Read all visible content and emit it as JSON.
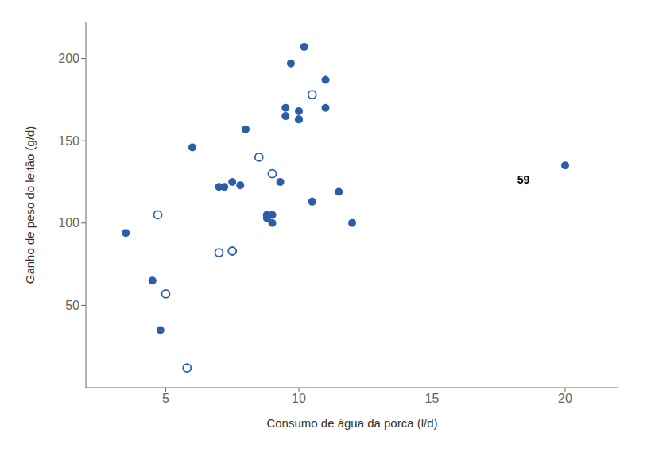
{
  "chart_data": {
    "type": "scatter",
    "xlabel": "Consumo de água da porca (l/d)",
    "ylabel": "Ganho de peso do leitão (g/d)",
    "xlim": [
      2,
      22
    ],
    "ylim": [
      0,
      222
    ],
    "xticks": [
      5,
      10,
      15,
      20
    ],
    "yticks": [
      50,
      100,
      150,
      200
    ],
    "grid": false,
    "series": [
      {
        "color": "#2B5EA7",
        "marker": "circle",
        "x": [
          3.5,
          4.5,
          4.8,
          6.0,
          7.0,
          7.2,
          7.5,
          7.8,
          8.0,
          8.5,
          8.8,
          8.8,
          9.0,
          9.0,
          9.3,
          9.5,
          9.5,
          9.7,
          10.0,
          10.0,
          10.0,
          10.2,
          10.5,
          11.0,
          11.0,
          11.5,
          12.0,
          20.0
        ],
        "values": [
          94,
          65,
          35,
          146,
          122,
          122,
          125,
          123,
          157,
          140,
          105,
          103,
          105,
          100,
          125,
          170,
          165,
          197,
          168,
          163,
          163,
          207,
          113,
          187,
          170,
          119,
          100,
          135
        ]
      },
      {
        "color": "#2B5EA7",
        "marker": "open_circle",
        "x": [
          4.7,
          5.0,
          5.8,
          7.0,
          7.5,
          8.5,
          9.0,
          10.5
        ],
        "values": [
          105,
          57,
          12,
          82,
          83,
          140,
          130,
          178
        ]
      }
    ],
    "annotations": [
      {
        "text": "59",
        "x": 18.2,
        "y": 126
      }
    ]
  }
}
